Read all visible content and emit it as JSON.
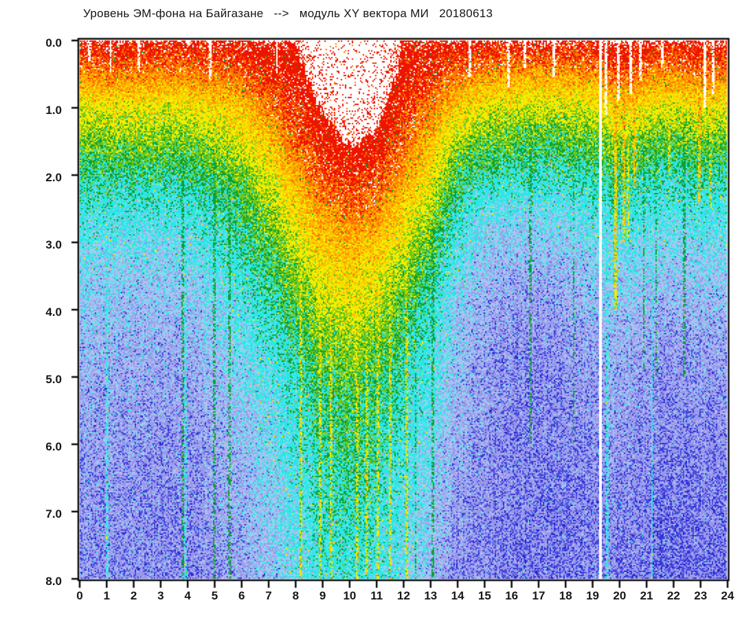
{
  "title": {
    "text": "Уровень ЭМ-фона на Байгазане   -->   модуль XY вектора МИ   20180613"
  },
  "chart_data": {
    "type": "heatmap",
    "title": "Уровень ЭМ-фона на Байгазане --> модуль XY вектора МИ 20180613",
    "station": "Байгазан",
    "date": "20180613",
    "x_axis": {
      "min": 0,
      "max": 24,
      "tick_step": 1,
      "tick_labels": [
        "0",
        "1",
        "2",
        "3",
        "4",
        "5",
        "6",
        "7",
        "8",
        "9",
        "10",
        "11",
        "12",
        "13",
        "14",
        "15",
        "16",
        "17",
        "18",
        "19",
        "20",
        "21",
        "22",
        "23",
        "24"
      ]
    },
    "y_axis": {
      "min": 0.0,
      "max": 8.0,
      "inverted": true,
      "tick_step": 1.0,
      "tick_labels": [
        "0.0",
        "1.0",
        "2.0",
        "3.0",
        "4.0",
        "5.0",
        "6.0",
        "7.0",
        "8.0"
      ]
    },
    "legend_position": "none",
    "grid_lines": false,
    "palette": [
      {
        "max": 0.135,
        "color": "#2222cf"
      },
      {
        "max": 0.185,
        "color": "#4b4be0"
      },
      {
        "max": 0.245,
        "color": "#9898ea"
      },
      {
        "max": 0.285,
        "color": "#b3bcf2"
      },
      {
        "max": 0.325,
        "color": "#7edeee"
      },
      {
        "max": 0.425,
        "color": "#2ce6e6"
      },
      {
        "max": 0.475,
        "color": "#0f9f2f"
      },
      {
        "max": 0.545,
        "color": "#6ec719"
      },
      {
        "max": 0.655,
        "color": "#f4ec00"
      },
      {
        "max": 0.75,
        "color": "#ffb800"
      },
      {
        "max": 0.86,
        "color": "#ff7300"
      },
      {
        "max": 9.0,
        "color": "#ee1400"
      }
    ],
    "accents": {
      "red_dot": "#ee1400",
      "orange_dot": "#ff7300",
      "green_speck": "#0f9f2f",
      "yellow_speck": "#f4ec00",
      "lavender_speck": "#cf9bd9",
      "frame": "#0a0a0a"
    },
    "grid": {
      "x_start": 0,
      "x_step": 1,
      "depth_start": 0,
      "depth_step": 0.5,
      "levels": [
        [
          0.95,
          0.96,
          0.96,
          0.96,
          0.96,
          0.97,
          0.98,
          0.99,
          0.98,
          1.14,
          1.22,
          1.18,
          0.99,
          0.97,
          0.98,
          0.96,
          0.95,
          0.95,
          0.95,
          0.96,
          1.03,
          0.98,
          0.97,
          1.0,
          0.98
        ],
        [
          0.76,
          0.77,
          0.78,
          0.78,
          0.78,
          0.8,
          0.83,
          0.9,
          0.93,
          1.07,
          1.15,
          1.11,
          0.95,
          0.9,
          0.82,
          0.76,
          0.73,
          0.73,
          0.74,
          0.76,
          0.86,
          0.8,
          0.78,
          0.82,
          0.8
        ],
        [
          0.58,
          0.59,
          0.6,
          0.6,
          0.61,
          0.63,
          0.67,
          0.78,
          0.88,
          0.99,
          1.08,
          1.04,
          0.9,
          0.8,
          0.66,
          0.6,
          0.57,
          0.56,
          0.57,
          0.59,
          0.67,
          0.62,
          0.61,
          0.63,
          0.62
        ],
        [
          0.49,
          0.5,
          0.51,
          0.51,
          0.52,
          0.54,
          0.58,
          0.66,
          0.8,
          0.92,
          1.0,
          0.96,
          0.82,
          0.7,
          0.55,
          0.5,
          0.47,
          0.46,
          0.47,
          0.49,
          0.54,
          0.51,
          0.5,
          0.51,
          0.51
        ],
        [
          0.42,
          0.42,
          0.43,
          0.43,
          0.44,
          0.46,
          0.5,
          0.58,
          0.7,
          0.84,
          0.9,
          0.87,
          0.74,
          0.62,
          0.47,
          0.42,
          0.4,
          0.39,
          0.4,
          0.42,
          0.45,
          0.43,
          0.42,
          0.43,
          0.43
        ],
        [
          0.37,
          0.36,
          0.37,
          0.37,
          0.38,
          0.41,
          0.45,
          0.52,
          0.62,
          0.74,
          0.8,
          0.77,
          0.65,
          0.55,
          0.41,
          0.34,
          0.32,
          0.32,
          0.33,
          0.36,
          0.39,
          0.38,
          0.37,
          0.38,
          0.38
        ],
        [
          0.32,
          0.31,
          0.32,
          0.32,
          0.33,
          0.37,
          0.41,
          0.47,
          0.55,
          0.66,
          0.7,
          0.67,
          0.58,
          0.49,
          0.36,
          0.29,
          0.27,
          0.27,
          0.28,
          0.31,
          0.34,
          0.33,
          0.33,
          0.33,
          0.33
        ],
        [
          0.29,
          0.28,
          0.28,
          0.29,
          0.3,
          0.33,
          0.37,
          0.42,
          0.5,
          0.59,
          0.62,
          0.6,
          0.52,
          0.44,
          0.32,
          0.27,
          0.24,
          0.24,
          0.25,
          0.28,
          0.31,
          0.3,
          0.29,
          0.3,
          0.3
        ],
        [
          0.27,
          0.26,
          0.26,
          0.27,
          0.27,
          0.3,
          0.33,
          0.38,
          0.45,
          0.53,
          0.56,
          0.54,
          0.47,
          0.4,
          0.29,
          0.25,
          0.22,
          0.22,
          0.23,
          0.26,
          0.28,
          0.27,
          0.27,
          0.27,
          0.27
        ],
        [
          0.25,
          0.25,
          0.25,
          0.25,
          0.26,
          0.28,
          0.31,
          0.35,
          0.41,
          0.48,
          0.51,
          0.49,
          0.43,
          0.37,
          0.28,
          0.24,
          0.21,
          0.21,
          0.22,
          0.24,
          0.26,
          0.25,
          0.25,
          0.25,
          0.25
        ],
        [
          0.24,
          0.23,
          0.24,
          0.24,
          0.24,
          0.26,
          0.29,
          0.32,
          0.38,
          0.45,
          0.47,
          0.45,
          0.4,
          0.35,
          0.27,
          0.23,
          0.21,
          0.2,
          0.21,
          0.23,
          0.25,
          0.24,
          0.24,
          0.24,
          0.24
        ],
        [
          0.23,
          0.22,
          0.23,
          0.23,
          0.23,
          0.25,
          0.27,
          0.3,
          0.36,
          0.42,
          0.44,
          0.42,
          0.38,
          0.33,
          0.26,
          0.23,
          0.2,
          0.2,
          0.21,
          0.22,
          0.24,
          0.23,
          0.23,
          0.23,
          0.23
        ],
        [
          0.22,
          0.22,
          0.22,
          0.22,
          0.22,
          0.24,
          0.26,
          0.29,
          0.34,
          0.4,
          0.42,
          0.41,
          0.36,
          0.31,
          0.25,
          0.22,
          0.2,
          0.2,
          0.2,
          0.21,
          0.23,
          0.22,
          0.22,
          0.22,
          0.22
        ],
        [
          0.22,
          0.21,
          0.21,
          0.22,
          0.22,
          0.23,
          0.25,
          0.28,
          0.33,
          0.38,
          0.4,
          0.39,
          0.35,
          0.3,
          0.24,
          0.22,
          0.2,
          0.19,
          0.2,
          0.21,
          0.22,
          0.22,
          0.21,
          0.22,
          0.21
        ],
        [
          0.21,
          0.21,
          0.21,
          0.21,
          0.21,
          0.23,
          0.25,
          0.27,
          0.32,
          0.37,
          0.39,
          0.37,
          0.34,
          0.29,
          0.23,
          0.21,
          0.2,
          0.19,
          0.19,
          0.2,
          0.22,
          0.21,
          0.21,
          0.21,
          0.21
        ],
        [
          0.21,
          0.2,
          0.21,
          0.21,
          0.21,
          0.22,
          0.24,
          0.26,
          0.31,
          0.36,
          0.37,
          0.36,
          0.33,
          0.28,
          0.23,
          0.21,
          0.19,
          0.19,
          0.19,
          0.2,
          0.21,
          0.21,
          0.2,
          0.21,
          0.2
        ],
        [
          0.21,
          0.2,
          0.2,
          0.21,
          0.21,
          0.22,
          0.23,
          0.25,
          0.3,
          0.35,
          0.36,
          0.35,
          0.32,
          0.27,
          0.22,
          0.21,
          0.19,
          0.19,
          0.19,
          0.2,
          0.21,
          0.2,
          0.2,
          0.2,
          0.2
        ]
      ]
    },
    "features": {
      "saturated_white_zone": {
        "x_from": 8.6,
        "x_to": 11.6,
        "depth_to": 2.0,
        "note": "white background with sparse red dots at top centre"
      },
      "whiteout_threshold": 1.0,
      "streaks": {
        "white_gaps": [
          {
            "x": 19.28
          }
        ],
        "white_slits": [
          {
            "x": 0.35,
            "dmax": 0.3
          },
          {
            "x": 1.15,
            "dmax": 0.5
          },
          {
            "x": 2.2,
            "dmax": 0.45
          },
          {
            "x": 4.85,
            "dmax": 0.6
          },
          {
            "x": 7.3,
            "dmax": 0.5
          },
          {
            "x": 14.45,
            "dmax": 0.55
          },
          {
            "x": 15.9,
            "dmax": 0.7
          },
          {
            "x": 16.5,
            "dmax": 0.4
          },
          {
            "x": 17.55,
            "dmax": 0.55
          },
          {
            "x": 19.5,
            "dmax": 1.1
          },
          {
            "x": 19.95,
            "dmax": 0.9
          },
          {
            "x": 20.4,
            "dmax": 0.8
          },
          {
            "x": 20.75,
            "dmax": 0.6
          },
          {
            "x": 21.6,
            "dmax": 0.4
          },
          {
            "x": 23.15,
            "dmax": 1.0
          },
          {
            "x": 23.45,
            "dmax": 0.8
          }
        ],
        "yellow": [
          {
            "x": 8.2,
            "dmax": 8
          },
          {
            "x": 8.9,
            "dmax": 8
          },
          {
            "x": 9.3,
            "dmax": 8
          },
          {
            "x": 10.3,
            "dmax": 8
          },
          {
            "x": 10.65,
            "dmax": 8
          },
          {
            "x": 11.05,
            "dmax": 8
          },
          {
            "x": 11.5,
            "dmax": 8
          },
          {
            "x": 12.1,
            "dmax": 8
          },
          {
            "x": 20.3,
            "dmax": 3
          },
          {
            "x": 21.85,
            "dmax": 2
          },
          {
            "x": 23.35,
            "dmax": 2.5
          }
        ],
        "orange": [
          {
            "x": 9.95,
            "dmax": 8
          },
          {
            "x": 19.85,
            "dmax": 4
          },
          {
            "x": 20.15,
            "dmax": 3
          },
          {
            "x": 20.55,
            "dmax": 2.2
          },
          {
            "x": 22.95,
            "dmax": 2.4
          }
        ],
        "green": [
          {
            "x": 3.8,
            "dmax": 8
          },
          {
            "x": 5.0,
            "dmax": 8
          },
          {
            "x": 5.55,
            "dmax": 8
          },
          {
            "x": 12.45,
            "dmax": 8
          },
          {
            "x": 13.1,
            "dmax": 8
          },
          {
            "x": 16.7,
            "dmax": 6
          },
          {
            "x": 18.3,
            "dmax": 6
          },
          {
            "x": 20.9,
            "dmax": 5
          },
          {
            "x": 21.35,
            "dmax": 5
          },
          {
            "x": 22.4,
            "dmax": 5
          }
        ],
        "cyan": [
          {
            "x": 1.0,
            "dmin": 1.5
          },
          {
            "x": 3.9,
            "dmin": 1.5
          },
          {
            "x": 19.55,
            "dmin": 0.5
          },
          {
            "x": 21.2,
            "dmin": 2
          }
        ]
      }
    }
  }
}
